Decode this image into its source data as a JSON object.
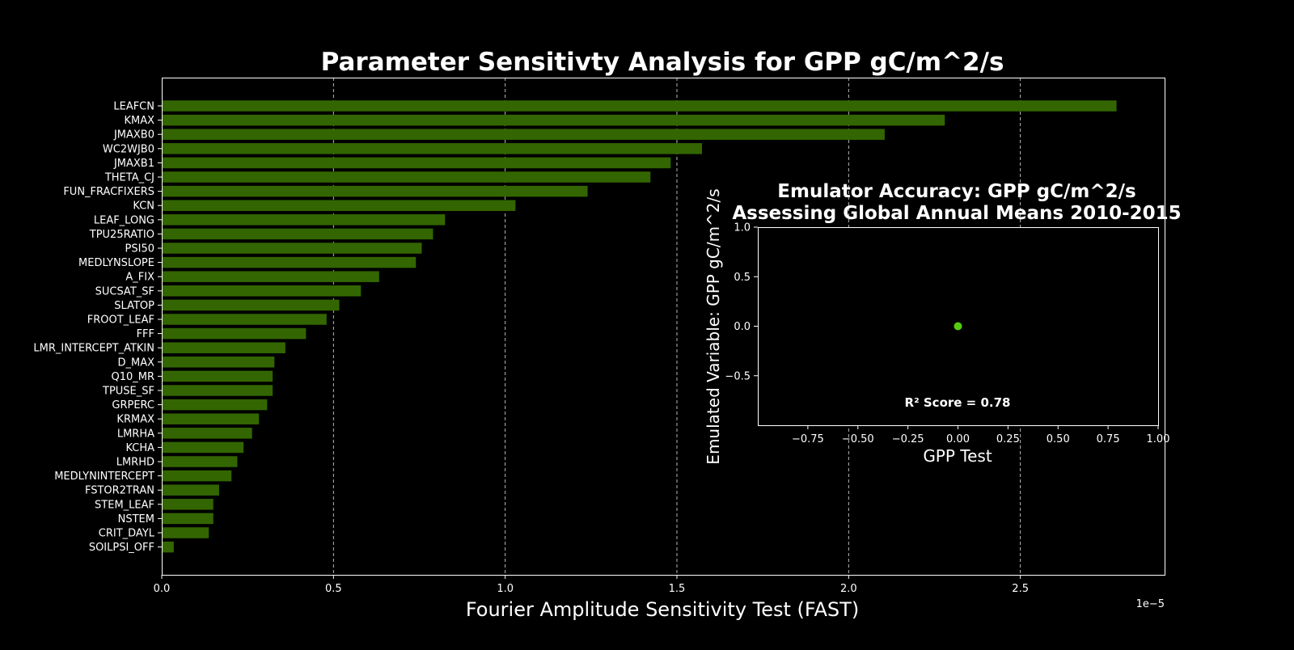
{
  "chart_data": [
    {
      "type": "bar",
      "orientation": "horizontal",
      "title": "Parameter Sensitivty Analysis for GPP gC/m^2/s",
      "xlabel": "Fourier Amplitude Sensitivity Test (FAST)",
      "ylabel": "",
      "offset_label": "1e−5",
      "xlim": [
        0,
        2.92
      ],
      "xticks": [
        0.0,
        0.5,
        1.0,
        1.5,
        2.0,
        2.5
      ],
      "xtick_labels": [
        "0.0",
        "0.5",
        "1.0",
        "1.5",
        "2.0",
        "2.5"
      ],
      "grid": "x, dashed",
      "bar_color": "#336600",
      "categories": [
        "LEAFCN",
        "KMAX",
        "JMAXB0",
        "WC2WJB0",
        "JMAXB1",
        "THETA_CJ",
        "FUN_FRACFIXERS",
        "KCN",
        "LEAF_LONG",
        "TPU25RATIO",
        "PSI50",
        "MEDLYNSLOPE",
        "A_FIX",
        "SUCSAT_SF",
        "SLATOP",
        "FROOT_LEAF",
        "FFF",
        "LMR_INTERCEPT_ATKIN",
        "D_MAX",
        "Q10_MR",
        "TPUSE_SF",
        "GRPERC",
        "KRMAX",
        "LMRHA",
        "KCHA",
        "LMRHD",
        "MEDLYNINTERCEPT",
        "FSTOR2TRAN",
        "STEM_LEAF",
        "NSTEM",
        "CRIT_DAYL",
        "SOILPSI_OFF"
      ],
      "values": [
        2.78,
        2.28,
        2.105,
        1.573,
        1.482,
        1.423,
        1.24,
        1.03,
        0.825,
        0.79,
        0.757,
        0.74,
        0.633,
        0.58,
        0.517,
        0.48,
        0.42,
        0.36,
        0.328,
        0.323,
        0.323,
        0.307,
        0.283,
        0.263,
        0.238,
        0.22,
        0.203,
        0.167,
        0.15,
        0.15,
        0.137,
        0.035
      ]
    },
    {
      "type": "scatter",
      "title": "Emulator Accuracy: GPP gC/m^2/s\nAssessing Global Annual Means 2010-2015",
      "title_lines": [
        "Emulator Accuracy: GPP gC/m^2/s",
        "Assessing Global Annual Means 2010-2015"
      ],
      "xlabel": "GPP Test",
      "ylabel": "Emulated Variable: GPP gC/m^2/s",
      "xlim": [
        -1.0,
        1.0
      ],
      "ylim": [
        -1.0,
        1.0
      ],
      "xticks": [
        -0.75,
        -0.5,
        -0.25,
        0.0,
        0.25,
        0.5,
        0.75,
        1.0
      ],
      "xtick_labels": [
        "−0.75",
        "−0.50",
        "−0.25",
        "0.00",
        "0.25",
        "0.50",
        "0.75",
        "1.00"
      ],
      "yticks": [
        -0.5,
        0.0,
        0.5,
        1.0
      ],
      "ytick_labels": [
        "−0.5",
        "0.0",
        "0.5",
        "1.0"
      ],
      "points": [
        {
          "x": 0.0,
          "y": 0.0
        }
      ],
      "point_color": "#55cc11",
      "annotation": "R² Score = 0.78"
    }
  ]
}
